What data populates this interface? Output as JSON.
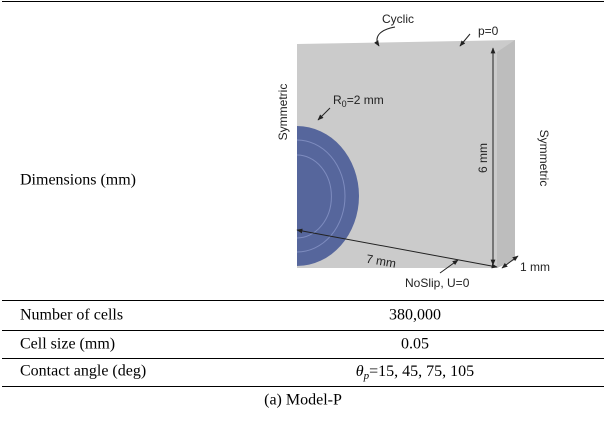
{
  "table": {
    "rows": [
      {
        "label": "Dimensions (mm)"
      },
      {
        "label": "Number of cells",
        "value": "380,000"
      },
      {
        "label": "Cell size (mm)",
        "value": "0.05"
      },
      {
        "label": "Contact angle (deg)",
        "value": {
          "symbol": "θ",
          "subscript": "p",
          "text": "=15, 45, 75, 105"
        }
      }
    ],
    "caption": "(a) Model-P"
  },
  "diagram": {
    "top": "Cyclic",
    "pressure": "p=0",
    "radius": {
      "base": "R",
      "subscript": "0",
      "text": "=2 mm"
    },
    "left": "Symmetric",
    "right": "Symmetric",
    "height": "6 mm",
    "width": "7 mm",
    "bottom": "NoSlip, U=0",
    "depth": "1 mm"
  }
}
